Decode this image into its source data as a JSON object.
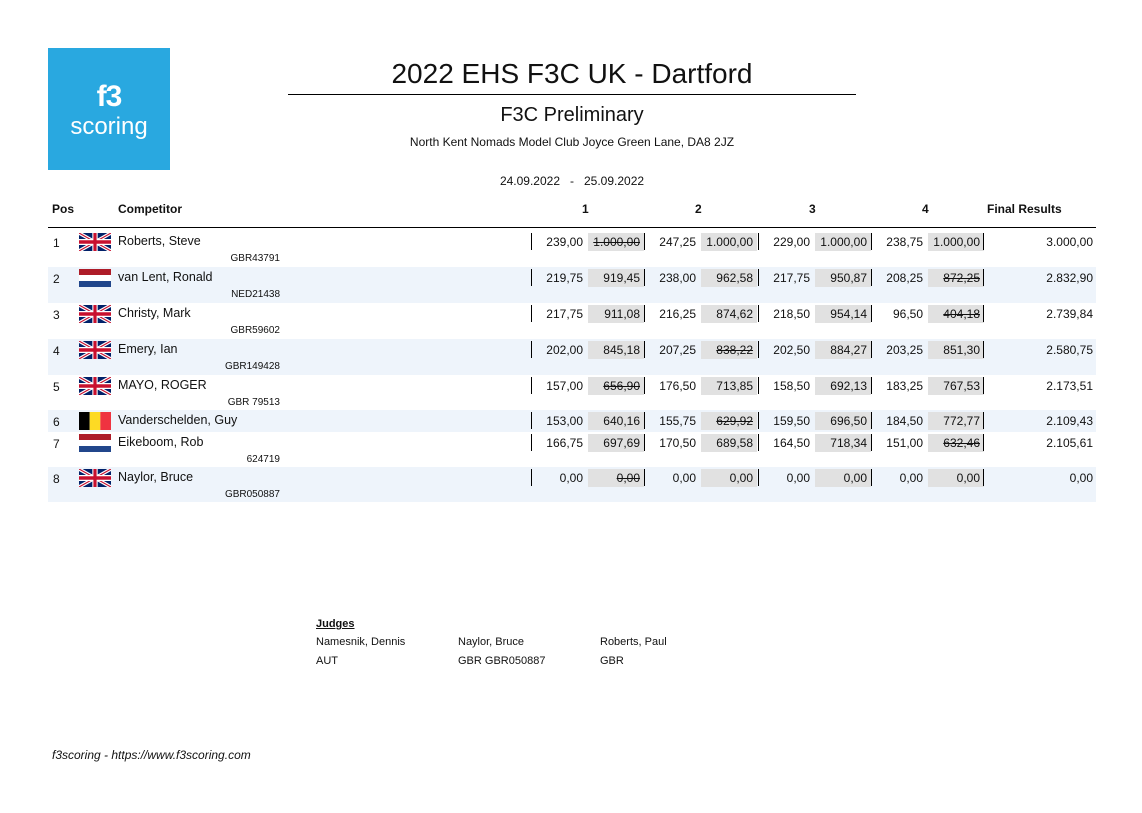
{
  "logo": {
    "line1": "f3",
    "line2": "scoring"
  },
  "event": {
    "title": "2022 EHS F3C UK - Dartford",
    "subtitle": "F3C Preliminary",
    "venue": "North Kent Nomads Model Club Joyce Green Lane, DA8 2JZ",
    "dates": "24.09.2022   -   25.09.2022"
  },
  "columns": {
    "pos": "Pos",
    "competitor": "Competitor",
    "r1": "1",
    "r2": "2",
    "r3": "3",
    "r4": "4",
    "final": "Final Results"
  },
  "rows": [
    {
      "pos": "1",
      "flag": "gb-flag",
      "name": "Roberts, Steve",
      "license": "GBR43791",
      "r1": {
        "raw": "239,00",
        "score": "1.000,00",
        "struck": true
      },
      "r2": {
        "raw": "247,25",
        "score": "1.000,00",
        "struck": false
      },
      "r3": {
        "raw": "229,00",
        "score": "1.000,00",
        "struck": false
      },
      "r4": {
        "raw": "238,75",
        "score": "1.000,00",
        "struck": false
      },
      "final": "3.000,00"
    },
    {
      "pos": "2",
      "flag": "nl-flag",
      "name": "van Lent, Ronald",
      "license": "NED21438",
      "r1": {
        "raw": "219,75",
        "score": "919,45",
        "struck": false
      },
      "r2": {
        "raw": "238,00",
        "score": "962,58",
        "struck": false
      },
      "r3": {
        "raw": "217,75",
        "score": "950,87",
        "struck": false
      },
      "r4": {
        "raw": "208,25",
        "score": "872,25",
        "struck": true
      },
      "final": "2.832,90"
    },
    {
      "pos": "3",
      "flag": "gb-flag",
      "name": "Christy, Mark",
      "license": "GBR59602",
      "r1": {
        "raw": "217,75",
        "score": "911,08",
        "struck": false
      },
      "r2": {
        "raw": "216,25",
        "score": "874,62",
        "struck": false
      },
      "r3": {
        "raw": "218,50",
        "score": "954,14",
        "struck": false
      },
      "r4": {
        "raw": "96,50",
        "score": "404,18",
        "struck": true
      },
      "final": "2.739,84"
    },
    {
      "pos": "4",
      "flag": "gb-flag",
      "name": "Emery, Ian",
      "license": "GBR149428",
      "r1": {
        "raw": "202,00",
        "score": "845,18",
        "struck": false
      },
      "r2": {
        "raw": "207,25",
        "score": "838,22",
        "struck": true
      },
      "r3": {
        "raw": "202,50",
        "score": "884,27",
        "struck": false
      },
      "r4": {
        "raw": "203,25",
        "score": "851,30",
        "struck": false
      },
      "final": "2.580,75"
    },
    {
      "pos": "5",
      "flag": "gb-flag",
      "name": "MAYO, ROGER",
      "license": "GBR 79513",
      "r1": {
        "raw": "157,00",
        "score": "656,90",
        "struck": true
      },
      "r2": {
        "raw": "176,50",
        "score": "713,85",
        "struck": false
      },
      "r3": {
        "raw": "158,50",
        "score": "692,13",
        "struck": false
      },
      "r4": {
        "raw": "183,25",
        "score": "767,53",
        "struck": false
      },
      "final": "2.173,51"
    },
    {
      "pos": "6",
      "flag": "be-flag",
      "name": "Vanderschelden, Guy",
      "license": "",
      "r1": {
        "raw": "153,00",
        "score": "640,16",
        "struck": false
      },
      "r2": {
        "raw": "155,75",
        "score": "629,92",
        "struck": true
      },
      "r3": {
        "raw": "159,50",
        "score": "696,50",
        "struck": false
      },
      "r4": {
        "raw": "184,50",
        "score": "772,77",
        "struck": false
      },
      "final": "2.109,43"
    },
    {
      "pos": "7",
      "flag": "nl-flag",
      "name": "Eikeboom, Rob",
      "license": "624719",
      "r1": {
        "raw": "166,75",
        "score": "697,69",
        "struck": false
      },
      "r2": {
        "raw": "170,50",
        "score": "689,58",
        "struck": false
      },
      "r3": {
        "raw": "164,50",
        "score": "718,34",
        "struck": false
      },
      "r4": {
        "raw": "151,00",
        "score": "632,46",
        "struck": true
      },
      "final": "2.105,61"
    },
    {
      "pos": "8",
      "flag": "gb-flag",
      "name": "Naylor, Bruce",
      "license": "GBR050887",
      "r1": {
        "raw": "0,00",
        "score": "0,00",
        "struck": true
      },
      "r2": {
        "raw": "0,00",
        "score": "0,00",
        "struck": false
      },
      "r3": {
        "raw": "0,00",
        "score": "0,00",
        "struck": false
      },
      "r4": {
        "raw": "0,00",
        "score": "0,00",
        "struck": false
      },
      "final": "0,00"
    }
  ],
  "judges": {
    "title": "Judges",
    "list": [
      {
        "name": "Namesnik, Dennis",
        "country": "AUT"
      },
      {
        "name": "Naylor, Bruce",
        "country": "GBR GBR050887"
      },
      {
        "name": "Roberts, Paul",
        "country": "GBR"
      }
    ]
  },
  "footer": "f3scoring - https://www.f3scoring.com",
  "colors": {
    "logo_bg": "#29a8e0",
    "row_shade": "#eef4fb",
    "score_box": "#e1e1e1"
  }
}
